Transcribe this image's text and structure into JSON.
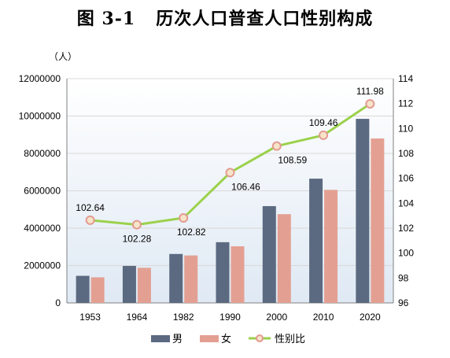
{
  "title_number": "图 3-1",
  "title_text": "历次人口普查人口性别构成",
  "chart_data": {
    "type": "bar",
    "categories": [
      "1953",
      "1964",
      "1982",
      "1990",
      "2000",
      "2010",
      "2020"
    ],
    "series": [
      {
        "name": "男",
        "color": "#5b6a80",
        "values": [
          1450000,
          1980000,
          2620000,
          3250000,
          5180000,
          6650000,
          9850000
        ]
      },
      {
        "name": "女",
        "color": "#e3a092",
        "values": [
          1370000,
          1880000,
          2540000,
          3030000,
          4750000,
          6050000,
          8800000
        ]
      }
    ],
    "line_series": {
      "name": "性别比",
      "color": "#9bd14b",
      "marker_color": "#e39a92",
      "values": [
        102.64,
        102.28,
        102.82,
        106.46,
        108.59,
        109.46,
        111.98
      ],
      "labels": [
        "102.64",
        "102.28",
        "102.82",
        "106.46",
        "108.59",
        "109.46",
        "111.98"
      ]
    },
    "y_left": {
      "unit": "（人）",
      "ylim": [
        0,
        12000000
      ],
      "ticks": [
        "0",
        "2000000",
        "4000000",
        "6000000",
        "8000000",
        "10000000",
        "12000000"
      ]
    },
    "y_right": {
      "ylim": [
        96,
        114
      ],
      "ticks": [
        "96",
        "98",
        "100",
        "102",
        "104",
        "106",
        "108",
        "110",
        "112",
        "114"
      ]
    },
    "legend": {
      "position": "bottom"
    },
    "grid": true
  }
}
